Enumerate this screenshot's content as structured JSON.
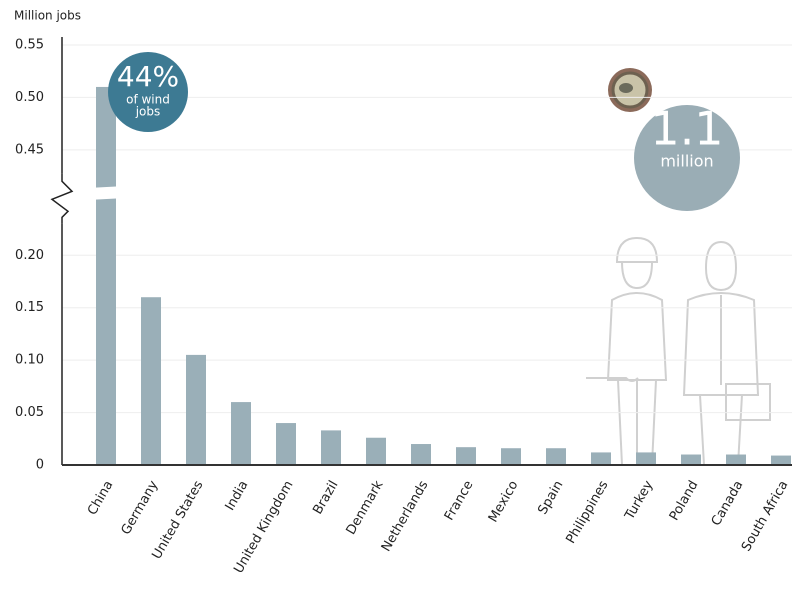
{
  "chart_data": {
    "type": "bar",
    "y_label": "Million jobs",
    "categories": [
      "China",
      "Germany",
      "United States",
      "India",
      "United Kingdom",
      "Brazil",
      "Denmark",
      "Netherlands",
      "France",
      "Mexico",
      "Spain",
      "Philippines",
      "Turkey",
      "Poland",
      "Canada",
      "South Africa"
    ],
    "values": [
      0.51,
      0.16,
      0.105,
      0.06,
      0.04,
      0.033,
      0.026,
      0.02,
      0.017,
      0.016,
      0.016,
      0.012,
      0.012,
      0.01,
      0.01,
      0.009
    ],
    "color": "#9aafb8",
    "ylim": [
      0,
      0.55
    ],
    "axis_break": [
      0.24,
      0.42
    ],
    "yticks": [
      0,
      {
        "value": 0.05,
        "label": "0.05"
      },
      {
        "value": 0.1,
        "label": "0.10"
      },
      {
        "value": 0.15,
        "label": "0.15"
      },
      {
        "value": 0.2,
        "label": "0.20"
      },
      {
        "value": 0.45,
        "label": "0.45"
      },
      {
        "value": 0.5,
        "label": "0.50"
      },
      {
        "value": 0.55,
        "label": "0.55"
      }
    ],
    "grid": true,
    "annotations": [
      "44%",
      "of wind",
      "jobs",
      "1.1",
      "million"
    ]
  }
}
